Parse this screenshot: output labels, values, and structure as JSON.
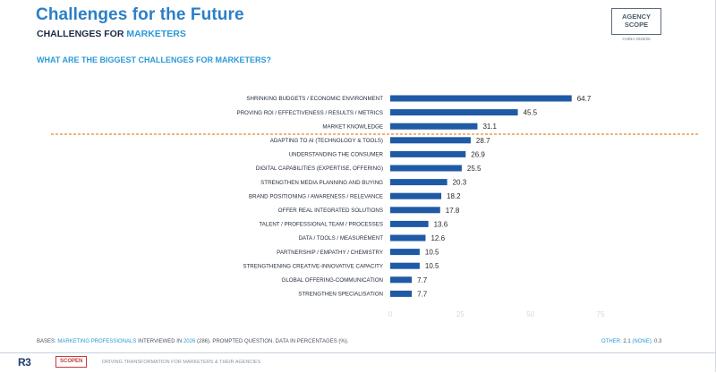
{
  "header": {
    "title": "Challenges for the Future",
    "subtitle_prefix": "CHALLENGES FOR",
    "subtitle_accent": "MARKETERS",
    "question": "WHAT ARE THE BIGGEST CHALLENGES FOR MARKETERS?"
  },
  "logo": {
    "line1": "AGENCY",
    "line2": "SCOPE",
    "sub": "CHINA 2025/26"
  },
  "footer": {
    "base_prefix": "BASES:",
    "base_group": "MARKETING PROFESSIONALS",
    "base_interviewed": "INTERVIEWED IN",
    "base_year": "2026",
    "base_rest": "(286). PROMPTED QUESTION. DATA IN PERCENTAGES (%).",
    "other_label": "OTHER:",
    "other_value": "2.1",
    "none_label": "(NONE):",
    "none_value": "0.3"
  },
  "brand": {
    "r3": "R3",
    "scopen": "SCOPEN",
    "tagline": "DRIVING TRANSFORMATION FOR MARKETERS & THEIR AGENCIES"
  },
  "colors": {
    "bar": "#1f5aa6",
    "divider": "#e8862a",
    "title": "#2b7fc7",
    "accent": "#2b9ad8"
  },
  "chart_data": {
    "type": "bar",
    "orientation": "horizontal",
    "categories": [
      "SHRINKING BUDGETS / ECONOMIC ENVIRONMENT",
      "PROVING ROI / EFFECTIVENESS / RESULTS / METRICS",
      "MARKET KNOWLEDGE",
      "ADAPTING TO AI (TECHNOLOGY & TOOLS)",
      "UNDERSTANDING THE CONSUMER",
      "DIGITAL CAPABILITIES (EXPERTISE, OFFERING)",
      "STRENGTHEN MEDIA PLANNING AND BUYING",
      "BRAND POSITIONING / AWARENESS / RELEVANCE",
      "OFFER REAL INTEGRATED SOLUTIONS",
      "TALENT / PROFESSIONAL TEAM / PROCESSES",
      "DATA / TOOLS / MEASUREMENT",
      "PARTNERSHIP / EMPATHY / CHEMISTRY",
      "STRENGTHENING CREATIVE-INNOVATIVE CAPACITY",
      "GLOBAL OFFERING-COMMUNICATION",
      "STRENGTHEN SPECIALISATION"
    ],
    "values": [
      64.7,
      45.5,
      31.1,
      28.7,
      26.9,
      25.5,
      20.3,
      18.2,
      17.8,
      13.6,
      12.6,
      10.5,
      10.5,
      7.7,
      7.7
    ],
    "value_labels": [
      "64.7",
      "45.5",
      "31.1",
      "28.7",
      "26.9",
      "25.5",
      "20.3",
      "18.2",
      "17.8",
      "13.6",
      "12.6",
      "10.5",
      "10.5",
      "7.7",
      "7.7"
    ],
    "xlim": [
      0,
      75
    ],
    "xticks": [
      "0",
      "25",
      "50",
      "75"
    ],
    "divider_after_index": 2,
    "grid": false,
    "legend": "none"
  }
}
